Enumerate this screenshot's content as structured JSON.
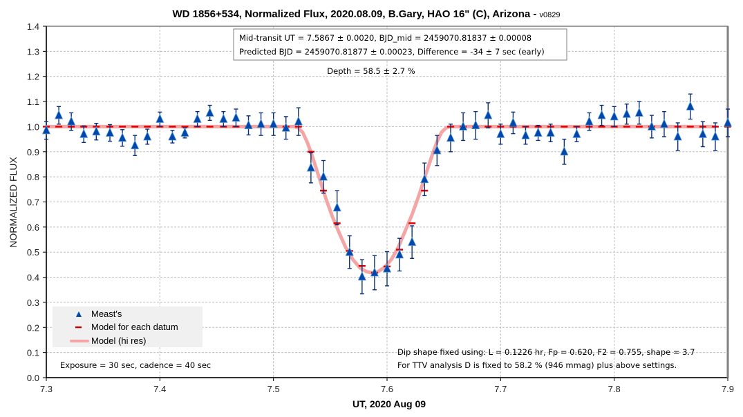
{
  "chart_data": {
    "type": "scatter",
    "title": "WD 1856+534, Normalized Flux, 2020.08.09, B.Gary, HAO 16\" (C), Arizona - ",
    "title_version": "v0829",
    "xlabel": "UT, 2020 Aug 09",
    "ylabel": "NORMALIZED FLUX",
    "xlim": [
      7.3,
      7.9
    ],
    "ylim": [
      0.0,
      1.4
    ],
    "xticks": [
      "7.3",
      "7.4",
      "7.5",
      "7.6",
      "7.7",
      "7.8",
      "7.9"
    ],
    "yticks": [
      "0.0",
      "0.1",
      "0.2",
      "0.3",
      "0.4",
      "0.5",
      "0.6",
      "0.7",
      "0.8",
      "0.9",
      "1.0",
      "1.1",
      "1.2",
      "1.3",
      "1.4"
    ],
    "grid": true,
    "legend": {
      "position": "bottom-left",
      "entries": [
        "Meast's",
        "Model for each datum",
        "Model (hi res)"
      ]
    },
    "annotations": {
      "box_line1": "Mid-transit UT = 7.5867 ± 0.0020, BJD_mid = 2459070.81837 ± 0.00008",
      "box_line2": "Predicted BJD = 2459070.81877 ± 0.00023, Difference = -34 ± 7 sec (early)",
      "depth": "Depth = 58.5 ± 2.7 %",
      "exposure": "Exposure = 30 sec, cadence = 40 sec",
      "dip_line1": "Dip shape fixed using:  L = 0.1226 hr, Fp = 0.620, F2 = 0.755, shape = 3.7",
      "dip_line2": "For TTV analysis D is fixed  to 58.2 % (946 mmag) plus above settings."
    },
    "model_params": {
      "mid_transit": 7.5867,
      "depth": 0.585,
      "L_hr": 0.1226,
      "Fp": 0.62,
      "shape": 3.7
    },
    "series": [
      {
        "name": "Meast's",
        "color": "#0047ab",
        "x": [
          7.3,
          7.311,
          7.322,
          7.333,
          7.344,
          7.356,
          7.367,
          7.378,
          7.389,
          7.4,
          7.411,
          7.422,
          7.433,
          7.444,
          7.456,
          7.467,
          7.478,
          7.489,
          7.5,
          7.511,
          7.522,
          7.533,
          7.544,
          7.556,
          7.567,
          7.578,
          7.589,
          7.6,
          7.611,
          7.622,
          7.633,
          7.644,
          7.656,
          7.667,
          7.678,
          7.689,
          7.7,
          7.711,
          7.722,
          7.733,
          7.744,
          7.756,
          7.767,
          7.778,
          7.789,
          7.8,
          7.811,
          7.822,
          7.833,
          7.844,
          7.856,
          7.867,
          7.878,
          7.889,
          7.9
        ],
        "y": [
          0.985,
          1.045,
          1.02,
          0.97,
          0.98,
          0.975,
          0.955,
          0.925,
          0.96,
          1.03,
          0.96,
          0.975,
          1.03,
          1.055,
          1.03,
          1.035,
          1.005,
          1.01,
          1.01,
          0.995,
          1.02,
          0.836,
          0.8,
          0.677,
          0.5,
          0.402,
          0.418,
          0.434,
          0.49,
          0.54,
          0.79,
          0.905,
          0.955,
          1.0,
          1.005,
          1.045,
          0.97,
          1.015,
          0.965,
          0.975,
          0.975,
          0.9,
          0.97,
          1.02,
          1.045,
          1.04,
          1.05,
          1.055,
          1.0,
          1.01,
          0.96,
          1.08,
          0.97,
          0.96,
          1.015
        ],
        "err": [
          0.035,
          0.035,
          0.035,
          0.033,
          0.033,
          0.033,
          0.033,
          0.04,
          0.03,
          0.028,
          0.025,
          0.02,
          0.03,
          0.03,
          0.03,
          0.035,
          0.038,
          0.045,
          0.045,
          0.045,
          0.055,
          0.06,
          0.065,
          0.068,
          0.065,
          0.068,
          0.068,
          0.068,
          0.065,
          0.065,
          0.065,
          0.06,
          0.055,
          0.055,
          0.055,
          0.05,
          0.04,
          0.043,
          0.035,
          0.03,
          0.035,
          0.05,
          0.03,
          0.035,
          0.04,
          0.04,
          0.04,
          0.045,
          0.045,
          0.05,
          0.055,
          0.05,
          0.05,
          0.055,
          0.055
        ]
      },
      {
        "name": "Model for each datum",
        "color": "#e00000",
        "x": [
          7.3,
          7.311,
          7.322,
          7.333,
          7.344,
          7.356,
          7.367,
          7.378,
          7.389,
          7.4,
          7.411,
          7.422,
          7.433,
          7.444,
          7.456,
          7.467,
          7.478,
          7.489,
          7.5,
          7.511,
          7.522,
          7.533,
          7.544,
          7.556,
          7.567,
          7.578,
          7.589,
          7.6,
          7.611,
          7.622,
          7.633,
          7.644,
          7.656,
          7.667,
          7.678,
          7.689,
          7.7,
          7.711,
          7.722,
          7.733,
          7.744,
          7.756,
          7.767,
          7.778,
          7.789,
          7.8,
          7.811,
          7.822,
          7.833,
          7.844,
          7.856,
          7.867,
          7.878,
          7.889,
          7.9
        ],
        "y": [
          1.0,
          1.0,
          1.0,
          1.0,
          1.0,
          1.0,
          1.0,
          1.0,
          1.0,
          1.0,
          1.0,
          1.0,
          1.0,
          1.0,
          1.0,
          1.0,
          1.0,
          1.0,
          1.0,
          1.0,
          1.0,
          0.9,
          0.745,
          0.615,
          0.505,
          0.445,
          0.418,
          0.443,
          0.51,
          0.615,
          0.745,
          0.9,
          1.0,
          1.0,
          1.0,
          1.0,
          1.0,
          1.0,
          1.0,
          1.0,
          1.0,
          1.0,
          1.0,
          1.0,
          1.0,
          1.0,
          1.0,
          1.0,
          1.0,
          1.0,
          1.0,
          1.0,
          1.0,
          1.0,
          1.0
        ]
      },
      {
        "name": "Model (hi res)",
        "color": "#f4a6a6",
        "x": [
          7.3,
          7.518,
          7.522,
          7.526,
          7.53,
          7.534,
          7.54,
          7.546,
          7.552,
          7.558,
          7.564,
          7.57,
          7.576,
          7.582,
          7.587,
          7.592,
          7.598,
          7.604,
          7.61,
          7.616,
          7.622,
          7.628,
          7.634,
          7.64,
          7.644,
          7.648,
          7.652,
          7.656,
          7.889
        ],
        "y": [
          1.0,
          1.0,
          0.995,
          0.975,
          0.935,
          0.885,
          0.8,
          0.715,
          0.64,
          0.575,
          0.515,
          0.47,
          0.438,
          0.422,
          0.418,
          0.422,
          0.44,
          0.472,
          0.52,
          0.585,
          0.65,
          0.725,
          0.81,
          0.89,
          0.94,
          0.978,
          0.995,
          1.0,
          1.0
        ]
      }
    ]
  }
}
